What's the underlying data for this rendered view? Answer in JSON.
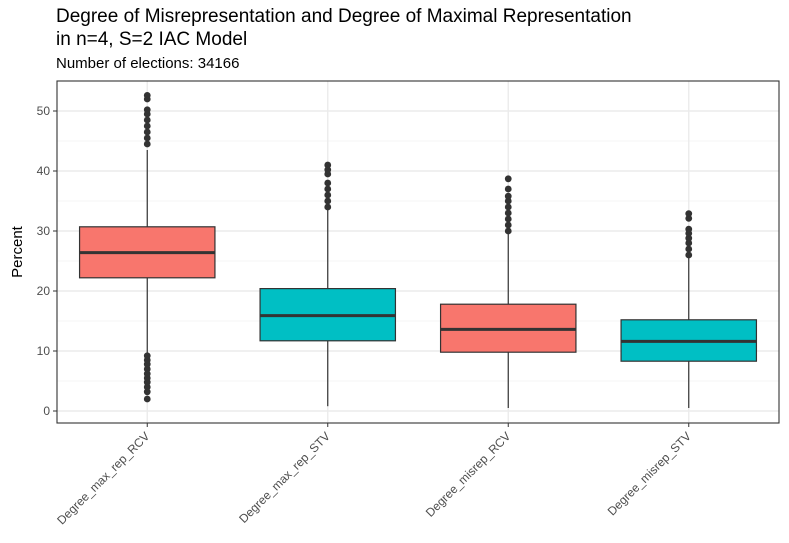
{
  "chart_data": {
    "type": "box",
    "title_line1": "Degree of Misrepresentation and Degree of Maximal Representation",
    "title_line2": "in n=4, S=2 IAC Model",
    "subtitle": "Number of elections: 34166",
    "xlabel": "",
    "ylabel": "Percent",
    "ylim": [
      -2,
      55
    ],
    "yticks": [
      0,
      10,
      20,
      30,
      40,
      50
    ],
    "grid": true,
    "legend": "none",
    "categories": [
      "Degree_max_rep_RCV",
      "Degree_max_rep_STV",
      "Degree_misrep_RCV",
      "Degree_misrep_STV"
    ],
    "colors": [
      "#F8766D",
      "#00BFC4",
      "#F8766D",
      "#00BFC4"
    ],
    "boxes": [
      {
        "category": "Degree_max_rep_RCV",
        "min": 9.5,
        "q1": 22.2,
        "median": 26.4,
        "q3": 30.7,
        "max": 43.5,
        "outliers_high": [
          44.5,
          45.5,
          46.5,
          47.5,
          48.5,
          49.5,
          50.2,
          52.0,
          52.6
        ],
        "outliers_low": [
          2.0,
          3.2,
          4.0,
          4.8,
          5.5,
          6.2,
          7.0,
          7.8,
          8.5,
          9.2
        ]
      },
      {
        "category": "Degree_max_rep_STV",
        "min": 0.8,
        "q1": 11.7,
        "median": 15.9,
        "q3": 20.4,
        "max": 33.5,
        "outliers_high": [
          34.0,
          35.0,
          36.0,
          37.0,
          38.0,
          39.5,
          40.2,
          41.0
        ],
        "outliers_low": []
      },
      {
        "category": "Degree_misrep_RCV",
        "min": 0.5,
        "q1": 9.8,
        "median": 13.6,
        "q3": 17.8,
        "max": 29.5,
        "outliers_high": [
          30.0,
          31.0,
          32.0,
          33.0,
          34.0,
          35.0,
          35.8,
          37.0,
          38.7
        ],
        "outliers_low": []
      },
      {
        "category": "Degree_misrep_STV",
        "min": 0.5,
        "q1": 8.3,
        "median": 11.6,
        "q3": 15.2,
        "max": 25.5,
        "outliers_high": [
          26.0,
          27.0,
          28.0,
          28.8,
          29.6,
          30.3,
          32.1,
          32.9
        ],
        "outliers_low": []
      }
    ]
  }
}
